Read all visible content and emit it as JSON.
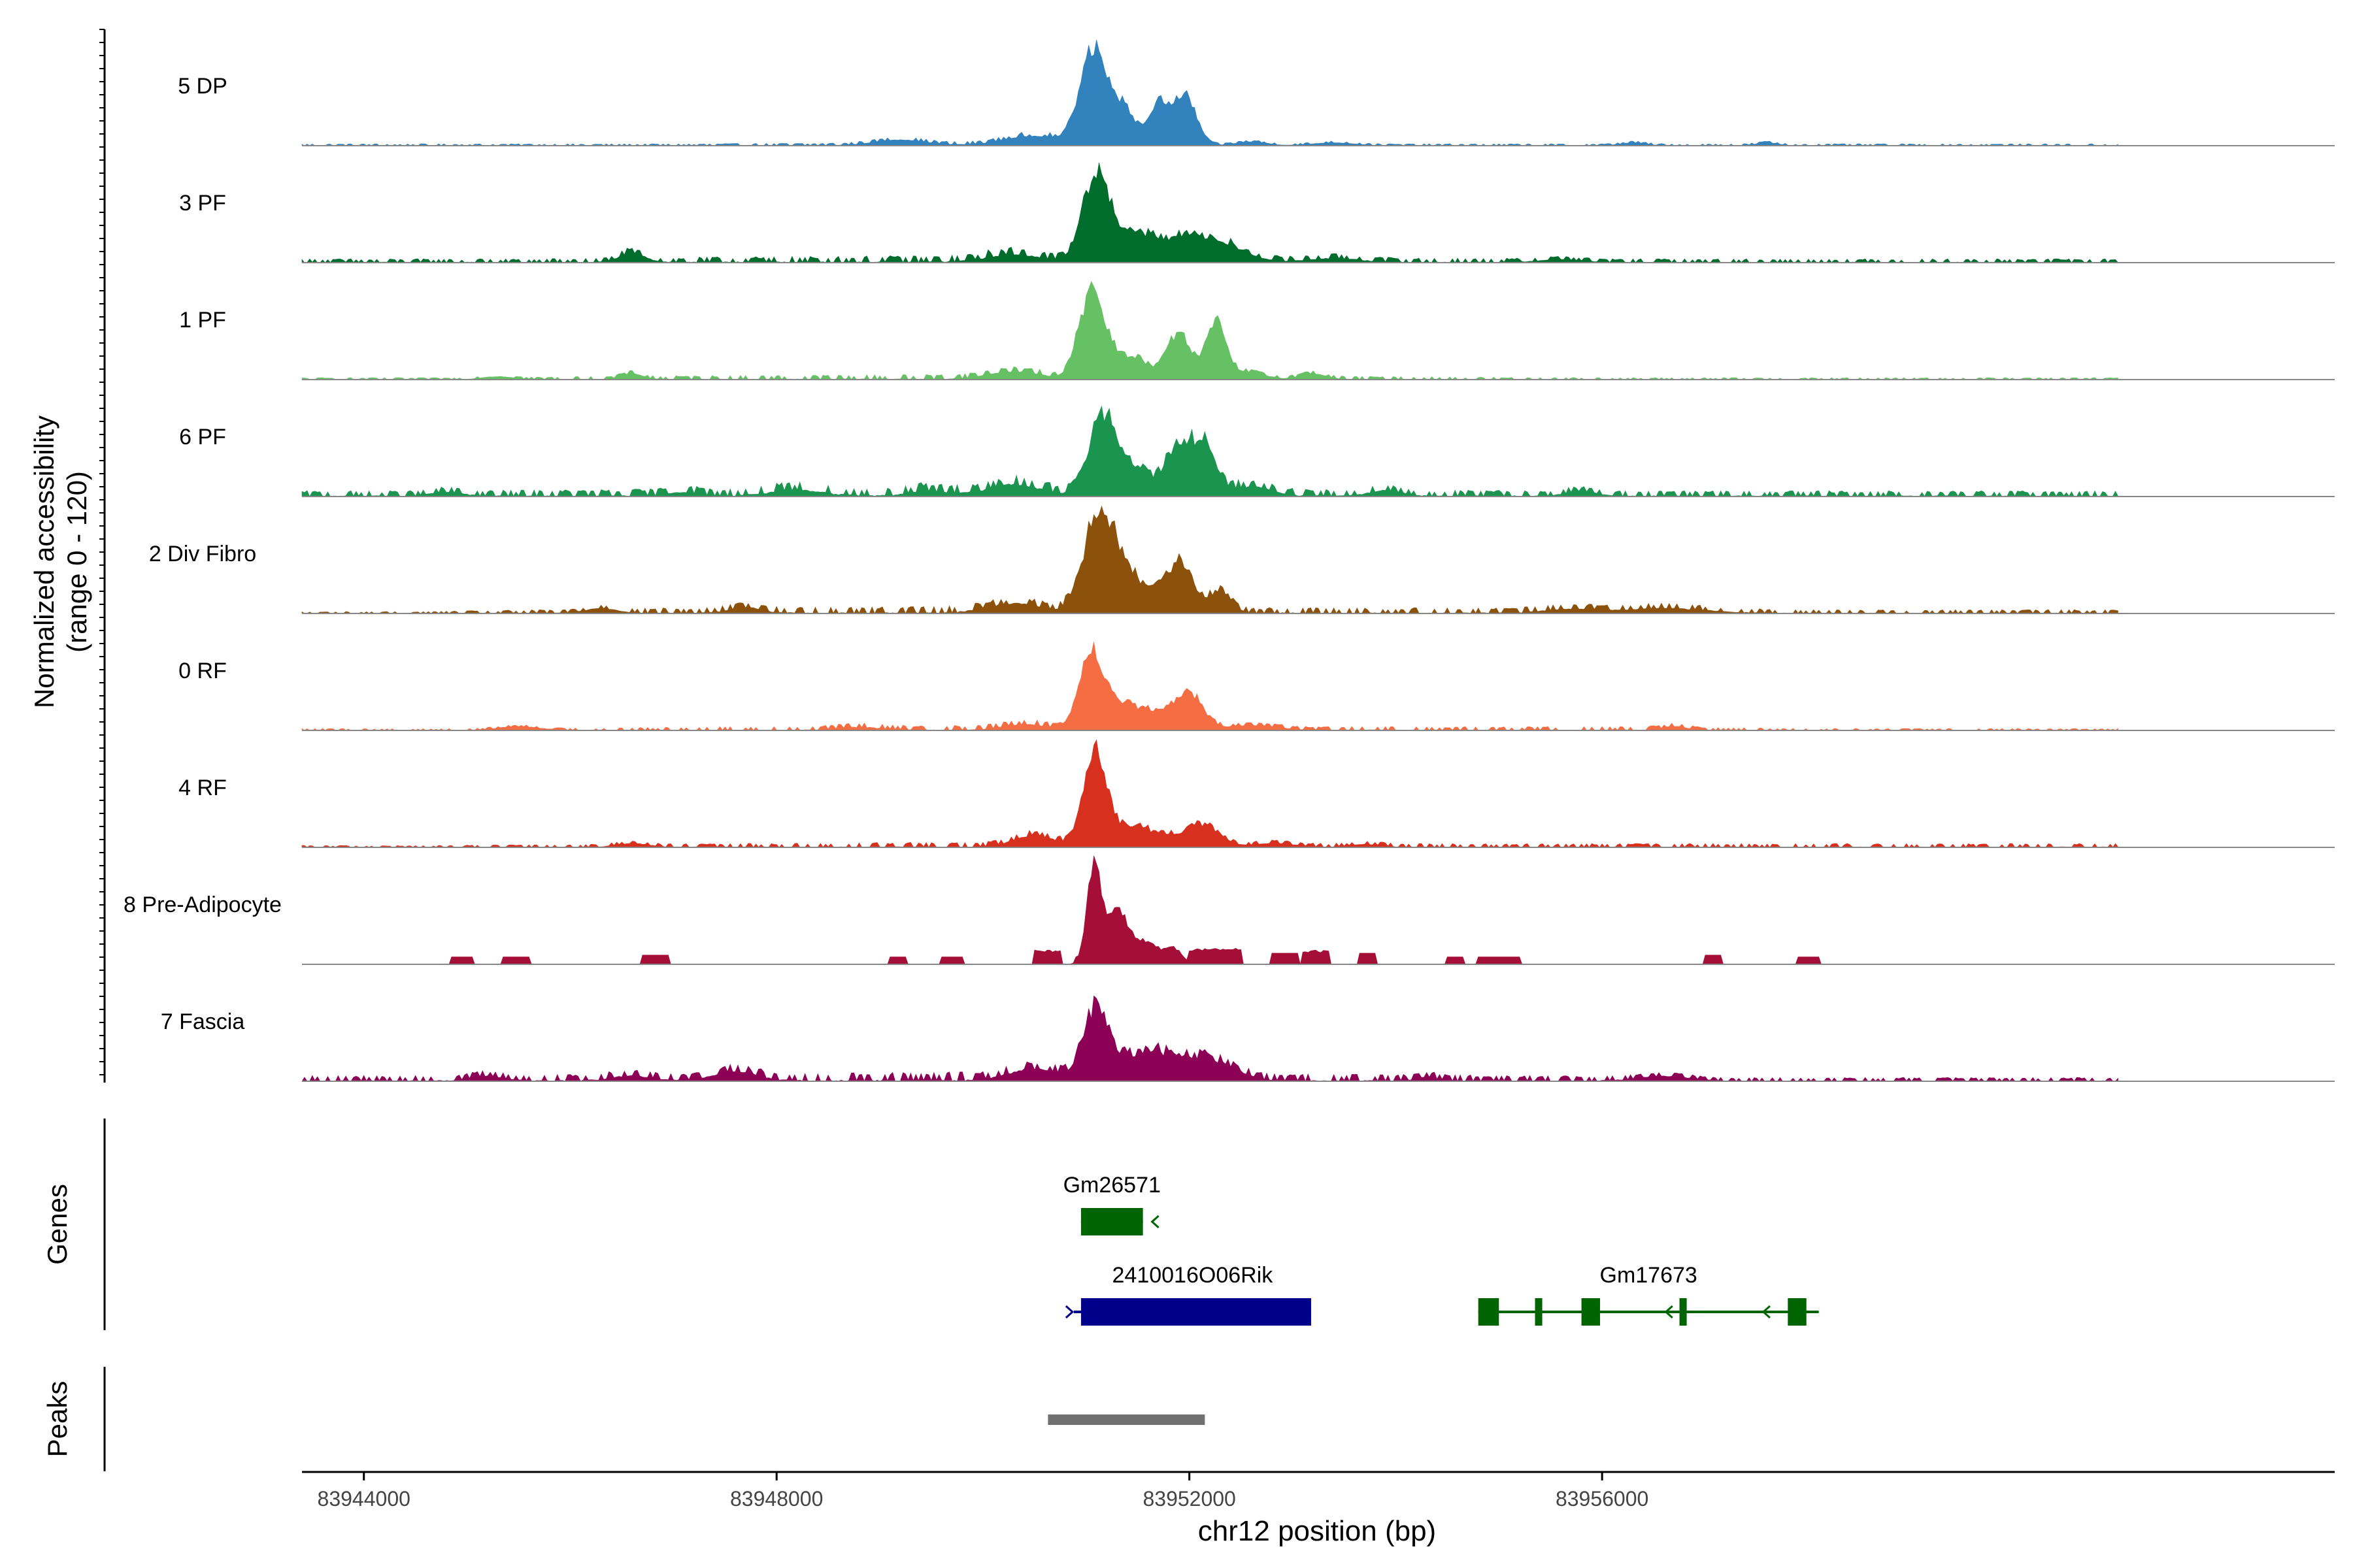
{
  "chart_data": {
    "type": "area",
    "title": "",
    "chromosome": "chr12",
    "xlabel": "chr12 position (bp)",
    "ylabel_line1": "Normalized accessibility",
    "ylabel_line2": "(range 0 - 120)",
    "y_range": [
      0,
      120
    ],
    "xlim": [
      83943400,
      83963100
    ],
    "x_ticks": [
      83944000,
      83948000,
      83952000,
      83956000
    ],
    "x_tick_labels": [
      "83944000",
      "83948000",
      "83952000",
      "83956000"
    ],
    "tracks": [
      {
        "name": "5 DP",
        "color": "#3182bd",
        "profile": {
          "background": [
            [
              83947000,
              1
            ],
            [
              83950500,
              2
            ],
            [
              83952500,
              1
            ],
            [
              83956500,
              1
            ]
          ],
          "peaks": [
            [
              83951050,
              90,
              120
            ],
            [
              83951300,
              45,
              160
            ],
            [
              83951700,
              40,
              90
            ],
            [
              83951950,
              55,
              110
            ],
            [
              83950500,
              10,
              300
            ],
            [
              83949200,
              6,
              250
            ],
            [
              83952600,
              4,
              150
            ],
            [
              83953400,
              3,
              200
            ],
            [
              83956300,
              3,
              120
            ],
            [
              83957600,
              3,
              100
            ]
          ]
        }
      },
      {
        "name": "3 PF",
        "color": "#006d2c",
        "profile": {
          "background": [
            [
              83945500,
              2
            ],
            [
              83947500,
              3
            ],
            [
              83950500,
              4
            ],
            [
              83952500,
              3
            ],
            [
              83956000,
              2
            ],
            [
              83958000,
              2
            ]
          ],
          "peaks": [
            [
              83951100,
              95,
              130
            ],
            [
              83951450,
              20,
              150
            ],
            [
              83951850,
              22,
              300
            ],
            [
              83952300,
              15,
              250
            ],
            [
              83946600,
              10,
              120
            ],
            [
              83950300,
              8,
              250
            ],
            [
              83953400,
              4,
              250
            ],
            [
              83955600,
              3,
              200
            ]
          ]
        }
      },
      {
        "name": "1 PF",
        "color": "#66c164",
        "profile": {
          "background": [
            [
              83944800,
              1
            ],
            [
              83947000,
              2
            ],
            [
              83950500,
              3
            ],
            [
              83952500,
              2
            ],
            [
              83956000,
              1
            ],
            [
              83958000,
              1
            ]
          ],
          "peaks": [
            [
              83951050,
              90,
              120
            ],
            [
              83951400,
              25,
              180
            ],
            [
              83951900,
              50,
              110
            ],
            [
              83952250,
              60,
              90
            ],
            [
              83950300,
              8,
              250
            ],
            [
              83952500,
              8,
              200
            ],
            [
              83946600,
              6,
              100
            ],
            [
              83953200,
              6,
              120
            ],
            [
              83945300,
              3,
              150
            ]
          ]
        }
      },
      {
        "name": "6 PF",
        "color": "#1b9450",
        "profile": {
          "background": [
            [
              83944500,
              3
            ],
            [
              83947000,
              4
            ],
            [
              83950500,
              5
            ],
            [
              83952500,
              4
            ],
            [
              83956000,
              3
            ],
            [
              83958000,
              3
            ]
          ],
          "peaks": [
            [
              83951150,
              80,
              130
            ],
            [
              83951450,
              30,
              160
            ],
            [
              83951900,
              55,
              120
            ],
            [
              83952150,
              50,
              110
            ],
            [
              83950300,
              12,
              250
            ],
            [
              83952600,
              10,
              200
            ],
            [
              83948200,
              6,
              250
            ],
            [
              83949500,
              5,
              200
            ],
            [
              83953900,
              6,
              150
            ],
            [
              83955800,
              5,
              150
            ],
            [
              83944800,
              4,
              150
            ],
            [
              83947100,
              4,
              150
            ]
          ]
        }
      },
      {
        "name": "2 Div Fibro",
        "color": "#8c510a",
        "profile": {
          "background": [
            [
              83944500,
              1
            ],
            [
              83947000,
              3
            ],
            [
              83950500,
              4
            ],
            [
              83952500,
              3
            ],
            [
              83956500,
              3
            ],
            [
              83958000,
              2
            ]
          ],
          "peaks": [
            [
              83951100,
              90,
              140
            ],
            [
              83951350,
              50,
              160
            ],
            [
              83951750,
              28,
              120
            ],
            [
              83951950,
              45,
              110
            ],
            [
              83952300,
              25,
              100
            ],
            [
              83950300,
              10,
              250
            ],
            [
              83947700,
              6,
              150
            ],
            [
              83946300,
              5,
              150
            ],
            [
              83956600,
              5,
              400
            ],
            [
              83955700,
              4,
              250
            ]
          ]
        }
      },
      {
        "name": "0 RF",
        "color": "#f46d43",
        "profile": {
          "background": [
            [
              83945500,
              1
            ],
            [
              83947500,
              2
            ],
            [
              83950500,
              3
            ],
            [
              83952500,
              2
            ],
            [
              83956500,
              2
            ],
            [
              83958000,
              1
            ]
          ],
          "peaks": [
            [
              83951050,
              80,
              120
            ],
            [
              83951350,
              25,
              160
            ],
            [
              83951700,
              18,
              150
            ],
            [
              83952000,
              38,
              130
            ],
            [
              83950400,
              6,
              200
            ],
            [
              83952600,
              5,
              250
            ],
            [
              83945500,
              4,
              200
            ],
            [
              83956700,
              4,
              120
            ],
            [
              83948800,
              3,
              200
            ]
          ]
        }
      },
      {
        "name": "4 RF",
        "color": "#d7301f",
        "profile": {
          "background": [
            [
              83944500,
              1
            ],
            [
              83947500,
              2
            ],
            [
              83950500,
              3
            ],
            [
              83952500,
              2
            ],
            [
              83956500,
              2
            ],
            [
              83958000,
              2
            ]
          ],
          "peaks": [
            [
              83951080,
              95,
              110
            ],
            [
              83951350,
              15,
              200
            ],
            [
              83951700,
              12,
              250
            ],
            [
              83952150,
              22,
              150
            ],
            [
              83950500,
              12,
              200
            ],
            [
              83952800,
              4,
              200
            ],
            [
              83946600,
              4,
              150
            ],
            [
              83953700,
              3,
              150
            ]
          ]
        }
      },
      {
        "name": "8 Pre-Adipocyte",
        "color": "#a50f37",
        "profile": {
          "background": [],
          "peaks": [
            [
              83951080,
              110,
              70
            ],
            [
              83951300,
              55,
              90
            ],
            [
              83951550,
              25,
              150
            ],
            [
              83951850,
              15,
              80
            ]
          ],
          "blocks": [
            [
              83944850,
              83945050,
              8
            ],
            [
              83945350,
              83945600,
              8
            ],
            [
              83946700,
              83946950,
              10
            ],
            [
              83949100,
              83949250,
              8
            ],
            [
              83949600,
              83949800,
              8
            ],
            [
              83950500,
              83950750,
              14
            ],
            [
              83950900,
              83951000,
              8
            ],
            [
              83952000,
              83952500,
              16
            ],
            [
              83952800,
              83953050,
              12
            ],
            [
              83953100,
              83953350,
              14
            ],
            [
              83953650,
              83953800,
              12
            ],
            [
              83954500,
              83954650,
              8
            ],
            [
              83954800,
              83955200,
              8
            ],
            [
              83957000,
              83957150,
              10
            ],
            [
              83957900,
              83958100,
              8
            ]
          ]
        }
      },
      {
        "name": "7 Fascia",
        "color": "#8c0056",
        "profile": {
          "background": [
            [
              83944500,
              3
            ],
            [
              83947000,
              4
            ],
            [
              83950000,
              5
            ],
            [
              83952500,
              4
            ],
            [
              83955500,
              3
            ],
            [
              83957000,
              2
            ]
          ],
          "peaks": [
            [
              83951100,
              75,
              120
            ],
            [
              83951450,
              20,
              200
            ],
            [
              83951850,
              25,
              250
            ],
            [
              83952300,
              15,
              200
            ],
            [
              83950500,
              12,
              250
            ],
            [
              83947600,
              10,
              200
            ],
            [
              83946600,
              5,
              200
            ],
            [
              83945200,
              5,
              150
            ],
            [
              83956600,
              5,
              250
            ],
            [
              83954300,
              4,
              100
            ]
          ]
        }
      }
    ],
    "genes_label": "Genes",
    "genes": [
      {
        "name": "Gm26571",
        "color": "#006400",
        "strand": "-",
        "start": 83950950,
        "end": 83951550,
        "row": 1,
        "exons": [
          [
            83950950,
            83951550
          ]
        ]
      },
      {
        "name": "2410016O06Rik",
        "color": "#00008b",
        "strand": "+",
        "start": 83950880,
        "end": 83953180,
        "row": 2,
        "exons": [
          [
            83950950,
            83953180
          ]
        ]
      },
      {
        "name": "Gm17673",
        "color": "#006400",
        "strand": "-",
        "start": 83954800,
        "end": 83958100,
        "row": 2,
        "exons": [
          [
            83954800,
            83955000
          ],
          [
            83955350,
            83955420
          ],
          [
            83955800,
            83955980
          ],
          [
            83956750,
            83956820
          ],
          [
            83957800,
            83957980
          ]
        ]
      }
    ],
    "peaks_label": "Peaks",
    "peak_regions": [
      [
        83950630,
        83952150
      ]
    ]
  }
}
